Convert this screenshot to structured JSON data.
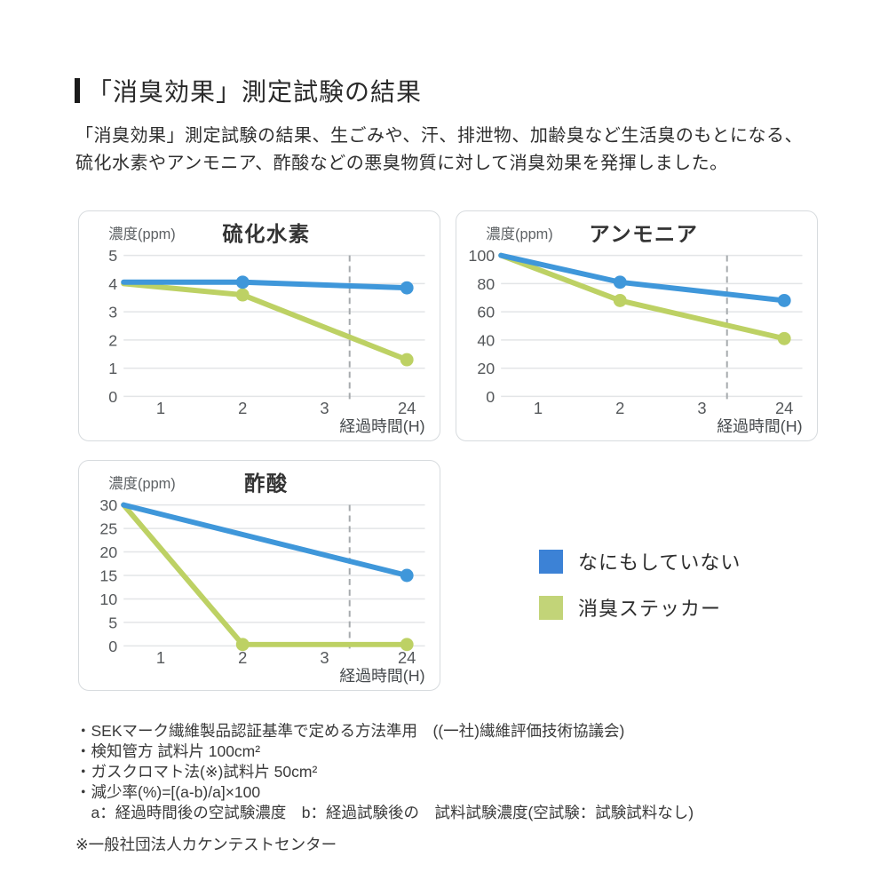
{
  "page": {
    "heading": "「消臭効果」測定試験の結果",
    "description_lines": [
      "「消臭効果」測定試験の結果、生ごみや、汗、排泄物、加齢臭など生活臭のもとになる、",
      "硫化水素やアンモニア、酢酸などの悪臭物質に対して消臭効果を発揮しました。"
    ]
  },
  "legend": {
    "items": [
      {
        "label": "なにもしていない",
        "color": "#3c82d6"
      },
      {
        "label": "消臭ステッカー",
        "color": "#c2d478"
      }
    ]
  },
  "footnotes": {
    "lines": [
      "・SEKマーク繊維製品認証基準で定める方法準用　((一社)繊維評価技術協議会)",
      "・検知管方 試料片 100cm²",
      "・ガスクロマト法(※)試料片 50cm²",
      "・減少率(%)=[(a-b)/a]×100",
      "　a：経過時間後の空試験濃度　b：経過試験後の　試料試験濃度(空試験：試験試料なし)"
    ],
    "certifier_note": "※一般社団法人カケンテストセンター"
  },
  "colors": {
    "gridline": "#e3e5e7",
    "dashed_guide": "#a6aaad",
    "tick_text": "#55585b",
    "axis_label": "#5d6164",
    "chart_title": "#333333",
    "line_blue": "#3f97da",
    "line_green": "#bdd164"
  },
  "chart_data": [
    {
      "type": "line",
      "title": "硫化水素",
      "ylabel": "濃度(ppm)",
      "xlabel": "経過時間(H)",
      "x_ticks": [
        "1",
        "2",
        "3",
        "24"
      ],
      "ylim": [
        0,
        5
      ],
      "y_ticks": [
        0,
        1,
        2,
        3,
        4,
        5
      ],
      "dashed_guide": true,
      "series": [
        {
          "name": "消臭ステッカー",
          "color": "#bdd164",
          "points": [
            {
              "x": "start",
              "y": 4.0,
              "dot": false
            },
            {
              "x": "2",
              "y": 3.6,
              "dot": true
            },
            {
              "x": "24",
              "y": 1.3,
              "dot": true
            }
          ]
        },
        {
          "name": "なにもしていない",
          "color": "#3f97da",
          "points": [
            {
              "x": "start",
              "y": 4.05,
              "dot": false
            },
            {
              "x": "2",
              "y": 4.05,
              "dot": true
            },
            {
              "x": "24",
              "y": 3.85,
              "dot": true
            }
          ]
        }
      ]
    },
    {
      "type": "line",
      "title": "アンモニア",
      "ylabel": "濃度(ppm)",
      "xlabel": "経過時間(H)",
      "x_ticks": [
        "1",
        "2",
        "3",
        "24"
      ],
      "ylim": [
        0,
        100
      ],
      "y_ticks": [
        0,
        20,
        40,
        60,
        80,
        100
      ],
      "dashed_guide": true,
      "series": [
        {
          "name": "消臭ステッカー",
          "color": "#bdd164",
          "points": [
            {
              "x": "start",
              "y": 100,
              "dot": false
            },
            {
              "x": "2",
              "y": 68,
              "dot": true
            },
            {
              "x": "24",
              "y": 41,
              "dot": true
            }
          ]
        },
        {
          "name": "なにもしていない",
          "color": "#3f97da",
          "points": [
            {
              "x": "start",
              "y": 100,
              "dot": false
            },
            {
              "x": "2",
              "y": 81,
              "dot": true
            },
            {
              "x": "24",
              "y": 68,
              "dot": true
            }
          ]
        }
      ]
    },
    {
      "type": "line",
      "title": "酢酸",
      "ylabel": "濃度(ppm)",
      "xlabel": "経過時間(H)",
      "x_ticks": [
        "1",
        "2",
        "3",
        "24"
      ],
      "ylim": [
        0,
        30
      ],
      "y_ticks": [
        0,
        5,
        10,
        15,
        20,
        25,
        30
      ],
      "dashed_guide": true,
      "series": [
        {
          "name": "消臭ステッカー",
          "color": "#bdd164",
          "points": [
            {
              "x": "start",
              "y": 30,
              "dot": false
            },
            {
              "x": "2",
              "y": 0.3,
              "dot": true
            },
            {
              "x": "24",
              "y": 0.3,
              "dot": true
            }
          ]
        },
        {
          "name": "なにもしていない",
          "color": "#3f97da",
          "points": [
            {
              "x": "start",
              "y": 30,
              "dot": false
            },
            {
              "x": "24",
              "y": 15,
              "dot": true
            }
          ]
        }
      ]
    }
  ]
}
